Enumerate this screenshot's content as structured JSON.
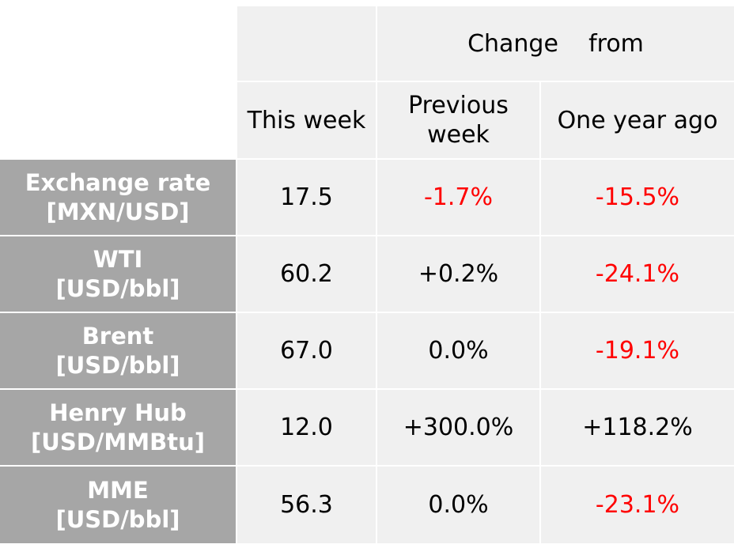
{
  "header": {
    "change_from": "Change    from",
    "this_week": "This week",
    "previous_week": [
      "Previous",
      "week"
    ],
    "one_year_ago": "One year ago"
  },
  "rows": [
    {
      "label": [
        "Exchange rate",
        "[MXN/USD]"
      ],
      "this_week": "17.5",
      "previous_week": "-1.7%",
      "one_year_ago": "-15.5%"
    },
    {
      "label": [
        "WTI",
        "[USD/bbl]"
      ],
      "this_week": "60.2",
      "previous_week": "+0.2%",
      "one_year_ago": "-24.1%"
    },
    {
      "label": [
        "Brent",
        "[USD/bbl]"
      ],
      "this_week": "67.0",
      "previous_week": "0.0%",
      "one_year_ago": "-19.1%"
    },
    {
      "label": [
        "Henry Hub",
        "[USD/MMBtu]"
      ],
      "this_week": "12.0",
      "previous_week": "+300.0%",
      "one_year_ago": "+118.2%"
    },
    {
      "label": [
        "MME",
        "[USD/bbl]"
      ],
      "this_week": "56.3",
      "previous_week": "0.0%",
      "one_year_ago": "-23.1%"
    }
  ],
  "colors": {
    "header_bg": "#f0f0f0",
    "label_bg": "#a6a6a6",
    "label_text": "#ffffff",
    "negative": "#ff0000",
    "positive": "#000000"
  }
}
